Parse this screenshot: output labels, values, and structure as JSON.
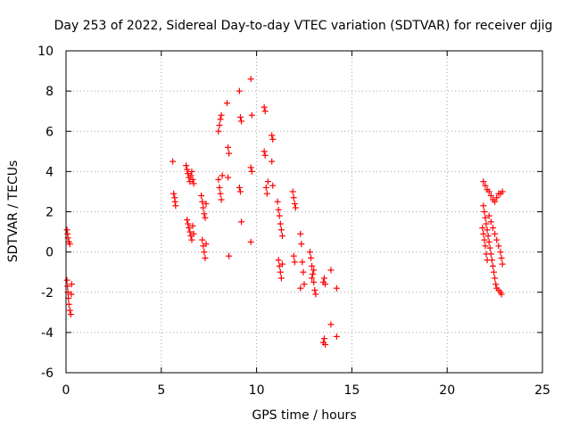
{
  "chart_data": {
    "type": "scatter",
    "title": "Day 253 of 2022, Sidereal Day-to-day VTEC variation (SDTVAR) for receiver djig",
    "xlabel": "GPS time / hours",
    "ylabel": "SDTVAR / TECUs",
    "xlim": [
      0,
      25
    ],
    "ylim": [
      -6,
      10
    ],
    "xticks": [
      0,
      5,
      10,
      15,
      20,
      25
    ],
    "yticks": [
      -6,
      -4,
      -2,
      0,
      2,
      4,
      6,
      8,
      10
    ],
    "grid": true,
    "marker": "+",
    "color": "#ff0000",
    "series": [
      {
        "name": "SDTVAR",
        "points": [
          [
            0.05,
            1.1
          ],
          [
            0.08,
            0.9
          ],
          [
            0.1,
            0.7
          ],
          [
            0.15,
            0.5
          ],
          [
            0.2,
            0.4
          ],
          [
            0.05,
            -1.4
          ],
          [
            0.08,
            -1.7
          ],
          [
            0.1,
            -2.0
          ],
          [
            0.12,
            -2.3
          ],
          [
            0.15,
            -2.6
          ],
          [
            0.2,
            -2.9
          ],
          [
            0.25,
            -3.1
          ],
          [
            0.3,
            -1.6
          ],
          [
            0.28,
            -2.1
          ],
          [
            5.6,
            4.5
          ],
          [
            5.65,
            2.9
          ],
          [
            5.7,
            2.7
          ],
          [
            5.72,
            2.5
          ],
          [
            5.75,
            2.3
          ],
          [
            6.3,
            4.3
          ],
          [
            6.35,
            4.1
          ],
          [
            6.4,
            3.9
          ],
          [
            6.45,
            3.7
          ],
          [
            6.5,
            3.5
          ],
          [
            6.55,
            3.8
          ],
          [
            6.6,
            4.0
          ],
          [
            6.65,
            3.6
          ],
          [
            6.7,
            3.4
          ],
          [
            6.35,
            1.6
          ],
          [
            6.4,
            1.4
          ],
          [
            6.45,
            1.2
          ],
          [
            6.5,
            1.0
          ],
          [
            6.55,
            0.8
          ],
          [
            6.6,
            0.6
          ],
          [
            6.65,
            1.3
          ],
          [
            6.7,
            0.9
          ],
          [
            7.1,
            2.8
          ],
          [
            7.15,
            2.5
          ],
          [
            7.2,
            2.2
          ],
          [
            7.25,
            1.9
          ],
          [
            7.3,
            1.7
          ],
          [
            7.35,
            2.4
          ],
          [
            7.15,
            0.6
          ],
          [
            7.2,
            0.3
          ],
          [
            7.25,
            0.0
          ],
          [
            7.3,
            -0.3
          ],
          [
            7.35,
            0.4
          ],
          [
            8.0,
            6.0
          ],
          [
            8.05,
            6.3
          ],
          [
            8.1,
            6.6
          ],
          [
            8.15,
            6.8
          ],
          [
            8.0,
            3.6
          ],
          [
            8.05,
            3.2
          ],
          [
            8.1,
            2.9
          ],
          [
            8.15,
            2.6
          ],
          [
            8.2,
            3.8
          ],
          [
            8.45,
            7.4
          ],
          [
            8.5,
            5.2
          ],
          [
            8.55,
            4.9
          ],
          [
            8.5,
            3.7
          ],
          [
            8.55,
            -0.2
          ],
          [
            9.1,
            8.0
          ],
          [
            9.15,
            6.7
          ],
          [
            9.2,
            6.5
          ],
          [
            9.1,
            3.2
          ],
          [
            9.15,
            3.0
          ],
          [
            9.2,
            1.5
          ],
          [
            9.7,
            8.6
          ],
          [
            9.75,
            6.8
          ],
          [
            9.7,
            4.2
          ],
          [
            9.75,
            4.0
          ],
          [
            9.7,
            0.5
          ],
          [
            10.4,
            7.2
          ],
          [
            10.45,
            7.0
          ],
          [
            10.4,
            5.0
          ],
          [
            10.45,
            4.8
          ],
          [
            10.5,
            3.2
          ],
          [
            10.55,
            2.9
          ],
          [
            10.6,
            3.5
          ],
          [
            10.8,
            5.8
          ],
          [
            10.85,
            5.6
          ],
          [
            10.8,
            4.5
          ],
          [
            10.85,
            3.3
          ],
          [
            11.1,
            2.5
          ],
          [
            11.15,
            2.1
          ],
          [
            11.2,
            1.8
          ],
          [
            11.25,
            1.4
          ],
          [
            11.3,
            1.1
          ],
          [
            11.35,
            0.8
          ],
          [
            11.15,
            -0.4
          ],
          [
            11.2,
            -0.7
          ],
          [
            11.25,
            -1.0
          ],
          [
            11.3,
            -1.3
          ],
          [
            11.35,
            -0.6
          ],
          [
            11.9,
            3.0
          ],
          [
            11.95,
            2.7
          ],
          [
            12.0,
            2.4
          ],
          [
            12.05,
            2.2
          ],
          [
            11.95,
            -0.2
          ],
          [
            12.0,
            -0.5
          ],
          [
            12.3,
            0.9
          ],
          [
            12.35,
            0.4
          ],
          [
            12.4,
            -0.5
          ],
          [
            12.45,
            -1.0
          ],
          [
            12.5,
            -1.6
          ],
          [
            12.3,
            -1.8
          ],
          [
            12.8,
            0.0
          ],
          [
            12.85,
            -0.3
          ],
          [
            12.9,
            -0.7
          ],
          [
            12.95,
            -1.1
          ],
          [
            13.0,
            -1.5
          ],
          [
            13.05,
            -1.9
          ],
          [
            13.1,
            -2.1
          ],
          [
            12.9,
            -1.3
          ],
          [
            13.0,
            -0.9
          ],
          [
            13.5,
            -1.5
          ],
          [
            13.55,
            -1.3
          ],
          [
            13.6,
            -1.6
          ],
          [
            13.9,
            -0.9
          ],
          [
            14.2,
            -1.8
          ],
          [
            13.5,
            -4.5
          ],
          [
            13.55,
            -4.3
          ],
          [
            13.6,
            -4.6
          ],
          [
            13.9,
            -3.6
          ],
          [
            14.2,
            -4.2
          ],
          [
            21.9,
            3.5
          ],
          [
            22.0,
            3.3
          ],
          [
            22.1,
            3.1
          ],
          [
            22.2,
            3.0
          ],
          [
            22.3,
            2.8
          ],
          [
            22.4,
            2.6
          ],
          [
            22.5,
            2.5
          ],
          [
            22.6,
            2.7
          ],
          [
            22.7,
            2.9
          ],
          [
            22.8,
            2.9
          ],
          [
            22.9,
            3.0
          ],
          [
            21.9,
            2.3
          ],
          [
            21.95,
            2.0
          ],
          [
            22.0,
            1.7
          ],
          [
            22.05,
            1.4
          ],
          [
            22.1,
            1.1
          ],
          [
            22.15,
            0.8
          ],
          [
            22.2,
            0.5
          ],
          [
            22.25,
            0.2
          ],
          [
            22.3,
            -0.1
          ],
          [
            22.35,
            -0.4
          ],
          [
            22.4,
            -0.7
          ],
          [
            22.45,
            -1.0
          ],
          [
            22.5,
            -1.3
          ],
          [
            22.55,
            -1.6
          ],
          [
            22.6,
            -1.8
          ],
          [
            22.7,
            -1.9
          ],
          [
            22.8,
            -2.0
          ],
          [
            22.85,
            -2.1
          ],
          [
            22.2,
            1.8
          ],
          [
            22.3,
            1.5
          ],
          [
            22.4,
            1.2
          ],
          [
            22.5,
            0.9
          ],
          [
            22.6,
            0.6
          ],
          [
            22.7,
            0.3
          ],
          [
            22.8,
            0.0
          ],
          [
            22.85,
            -0.3
          ],
          [
            22.9,
            -0.6
          ],
          [
            21.85,
            1.2
          ],
          [
            21.9,
            0.9
          ],
          [
            21.95,
            0.6
          ],
          [
            22.0,
            0.3
          ],
          [
            22.05,
            -0.1
          ],
          [
            22.1,
            -0.4
          ]
        ]
      }
    ]
  }
}
